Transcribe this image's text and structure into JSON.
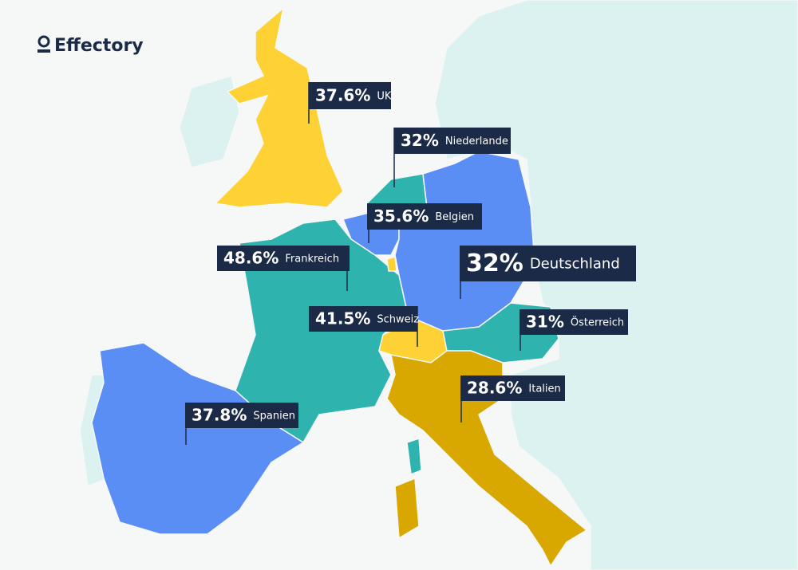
{
  "brand": {
    "name": "Effectory"
  },
  "labels": [
    {
      "value": "37.6%",
      "country": "UK"
    },
    {
      "value": "32%",
      "country": "Niederlande"
    },
    {
      "value": "35.6%",
      "country": "Belgien"
    },
    {
      "value": "48.6%",
      "country": "Frankreich"
    },
    {
      "value": "32%",
      "country": "Deutschland"
    },
    {
      "value": "41.5%",
      "country": "Schweiz"
    },
    {
      "value": "31%",
      "country": "Österreich"
    },
    {
      "value": "28.6%",
      "country": "Italien"
    },
    {
      "value": "37.8%",
      "country": "Spanien"
    }
  ]
}
